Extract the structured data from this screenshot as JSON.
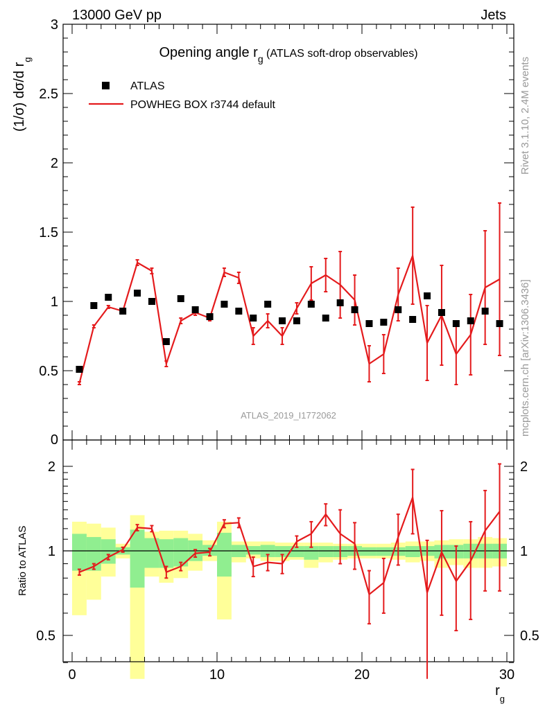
{
  "header": {
    "left": "13000 GeV pp",
    "right": "Jets"
  },
  "side_labels": {
    "top": "Rivet 3.1.10,  2.4M events",
    "bottom": "mcplots.cern.ch [arXiv:1306.3436]"
  },
  "chart_data": [
    {
      "type": "scatter",
      "panel": "main",
      "title_main": "Opening angle r",
      "title_sub": "g",
      "title_rest": " (ATLAS soft-drop observables)",
      "watermark": "ATLAS_2019_I1772062",
      "ylabel_main": "(1/σ) dσ/d r",
      "ylabel_sub": "g",
      "xlim": [
        0,
        30
      ],
      "ylim": [
        0,
        3
      ],
      "yticks": [
        0.5,
        1,
        1.5,
        2,
        2.5,
        3
      ],
      "ytick_labels": [
        "0.5",
        "1",
        "1.5",
        "2",
        "2.5",
        "3"
      ],
      "bottom_tick_label": "0",
      "legend": {
        "placement": "top-left",
        "entries": [
          "ATLAS",
          "POWHEG BOX r3744 default"
        ]
      },
      "x": [
        0.5,
        1.5,
        2.5,
        3.5,
        4.5,
        5.5,
        6.5,
        7.5,
        8.5,
        9.5,
        10.5,
        11.5,
        12.5,
        13.5,
        14.5,
        15.5,
        16.5,
        17.5,
        18.5,
        19.5,
        20.5,
        21.5,
        22.5,
        23.5,
        24.5,
        25.5,
        26.5,
        27.5,
        28.5,
        29.5
      ],
      "series": [
        {
          "name": "ATLAS",
          "color": "#000000",
          "values": [
            0.51,
            0.97,
            1.03,
            0.93,
            1.06,
            1.0,
            0.71,
            1.02,
            0.94,
            0.89,
            0.98,
            0.93,
            0.88,
            0.98,
            0.86,
            0.86,
            0.98,
            0.88,
            0.99,
            0.94,
            0.84,
            0.85,
            0.94,
            0.87,
            1.04,
            0.92,
            0.84,
            0.86,
            0.93,
            0.84
          ]
        },
        {
          "name": "POWHEG BOX r3744 default",
          "color": "#e41a1c",
          "values": [
            0.41,
            0.82,
            0.96,
            0.93,
            1.28,
            1.22,
            0.55,
            0.86,
            0.92,
            0.88,
            1.21,
            1.17,
            0.75,
            0.86,
            0.75,
            0.95,
            1.13,
            1.19,
            1.12,
            1.01,
            0.55,
            0.62,
            1.05,
            1.33,
            0.7,
            0.9,
            0.62,
            0.76,
            1.1,
            1.16
          ],
          "errors": [
            0.01,
            0.01,
            0.01,
            0.01,
            0.02,
            0.02,
            0.02,
            0.02,
            0.02,
            0.02,
            0.03,
            0.04,
            0.06,
            0.05,
            0.06,
            0.04,
            0.12,
            0.12,
            0.24,
            0.18,
            0.13,
            0.14,
            0.19,
            0.35,
            0.27,
            0.36,
            0.22,
            0.29,
            0.41,
            0.55
          ]
        }
      ]
    },
    {
      "type": "line",
      "panel": "ratio",
      "ylabel": "Ratio to ATLAS",
      "xlabel_main": "r",
      "xlabel_sub": "g",
      "xlim": [
        0,
        30
      ],
      "ylim": [
        0.35,
        2.25
      ],
      "xticks": [
        0,
        10,
        20,
        30
      ],
      "xtick_labels": [
        "0",
        "10",
        "20",
        "30"
      ],
      "yticks": [
        0.5,
        1,
        2
      ],
      "ytick_labels": [
        "0.5",
        "1",
        "2"
      ],
      "reference_line": 1,
      "band_colors": {
        "inner": "#90ee90",
        "outer": "#ffff99"
      },
      "band_inner": [
        [
          0.85,
          1.15
        ],
        [
          0.85,
          1.12
        ],
        [
          0.9,
          1.1
        ],
        [
          0.97,
          1.03
        ],
        [
          0.74,
          1.19
        ],
        [
          0.87,
          1.11
        ],
        [
          0.87,
          1.1
        ],
        [
          0.88,
          1.11
        ],
        [
          0.92,
          1.09
        ],
        [
          0.96,
          1.05
        ],
        [
          0.81,
          1.16
        ],
        [
          0.95,
          1.05
        ],
        [
          0.97,
          1.04
        ],
        [
          0.95,
          1.05
        ],
        [
          0.95,
          1.04
        ],
        [
          0.95,
          1.04
        ],
        [
          0.93,
          1.04
        ],
        [
          0.95,
          1.04
        ],
        [
          0.95,
          1.04
        ],
        [
          0.96,
          1.04
        ],
        [
          0.96,
          1.03
        ],
        [
          0.96,
          1.03
        ],
        [
          0.96,
          1.03
        ],
        [
          0.95,
          1.04
        ],
        [
          0.96,
          1.04
        ],
        [
          0.94,
          1.05
        ],
        [
          0.94,
          1.05
        ],
        [
          0.94,
          1.06
        ],
        [
          0.94,
          1.06
        ],
        [
          0.94,
          1.06
        ]
      ],
      "band_outer": [
        [
          0.59,
          1.27
        ],
        [
          0.67,
          1.25
        ],
        [
          0.81,
          1.21
        ],
        [
          0.94,
          1.06
        ],
        [
          0.35,
          1.34
        ],
        [
          0.81,
          1.17
        ],
        [
          0.77,
          1.18
        ],
        [
          0.8,
          1.18
        ],
        [
          0.85,
          1.15
        ],
        [
          0.92,
          1.09
        ],
        [
          0.57,
          1.27
        ],
        [
          0.91,
          1.08
        ],
        [
          0.94,
          1.08
        ],
        [
          0.92,
          1.08
        ],
        [
          0.92,
          1.07
        ],
        [
          0.93,
          1.07
        ],
        [
          0.87,
          1.07
        ],
        [
          0.91,
          1.07
        ],
        [
          0.93,
          1.06
        ],
        [
          0.94,
          1.06
        ],
        [
          0.94,
          1.06
        ],
        [
          0.94,
          1.06
        ],
        [
          0.93,
          1.07
        ],
        [
          0.91,
          1.08
        ],
        [
          0.92,
          1.08
        ],
        [
          0.87,
          1.09
        ],
        [
          0.89,
          1.1
        ],
        [
          0.87,
          1.1
        ],
        [
          0.87,
          1.12
        ],
        [
          0.88,
          1.11
        ]
      ],
      "series": [
        {
          "name": "POWHEG BOX r3744 default",
          "color": "#e41a1c",
          "values": [
            0.84,
            0.88,
            0.95,
            1.01,
            1.21,
            1.2,
            0.84,
            0.88,
            0.98,
            0.99,
            1.25,
            1.26,
            0.88,
            0.91,
            0.9,
            1.08,
            1.15,
            1.35,
            1.15,
            1.06,
            0.7,
            0.77,
            1.12,
            1.55,
            0.71,
            0.99,
            0.78,
            0.92,
            1.18,
            1.38
          ],
          "errors": [
            0.02,
            0.02,
            0.02,
            0.02,
            0.03,
            0.03,
            0.04,
            0.03,
            0.03,
            0.03,
            0.04,
            0.05,
            0.07,
            0.06,
            0.07,
            0.05,
            0.12,
            0.12,
            0.25,
            0.2,
            0.15,
            0.17,
            0.23,
            0.4,
            0.38,
            0.4,
            0.26,
            0.35,
            0.46,
            0.66
          ]
        }
      ]
    }
  ]
}
